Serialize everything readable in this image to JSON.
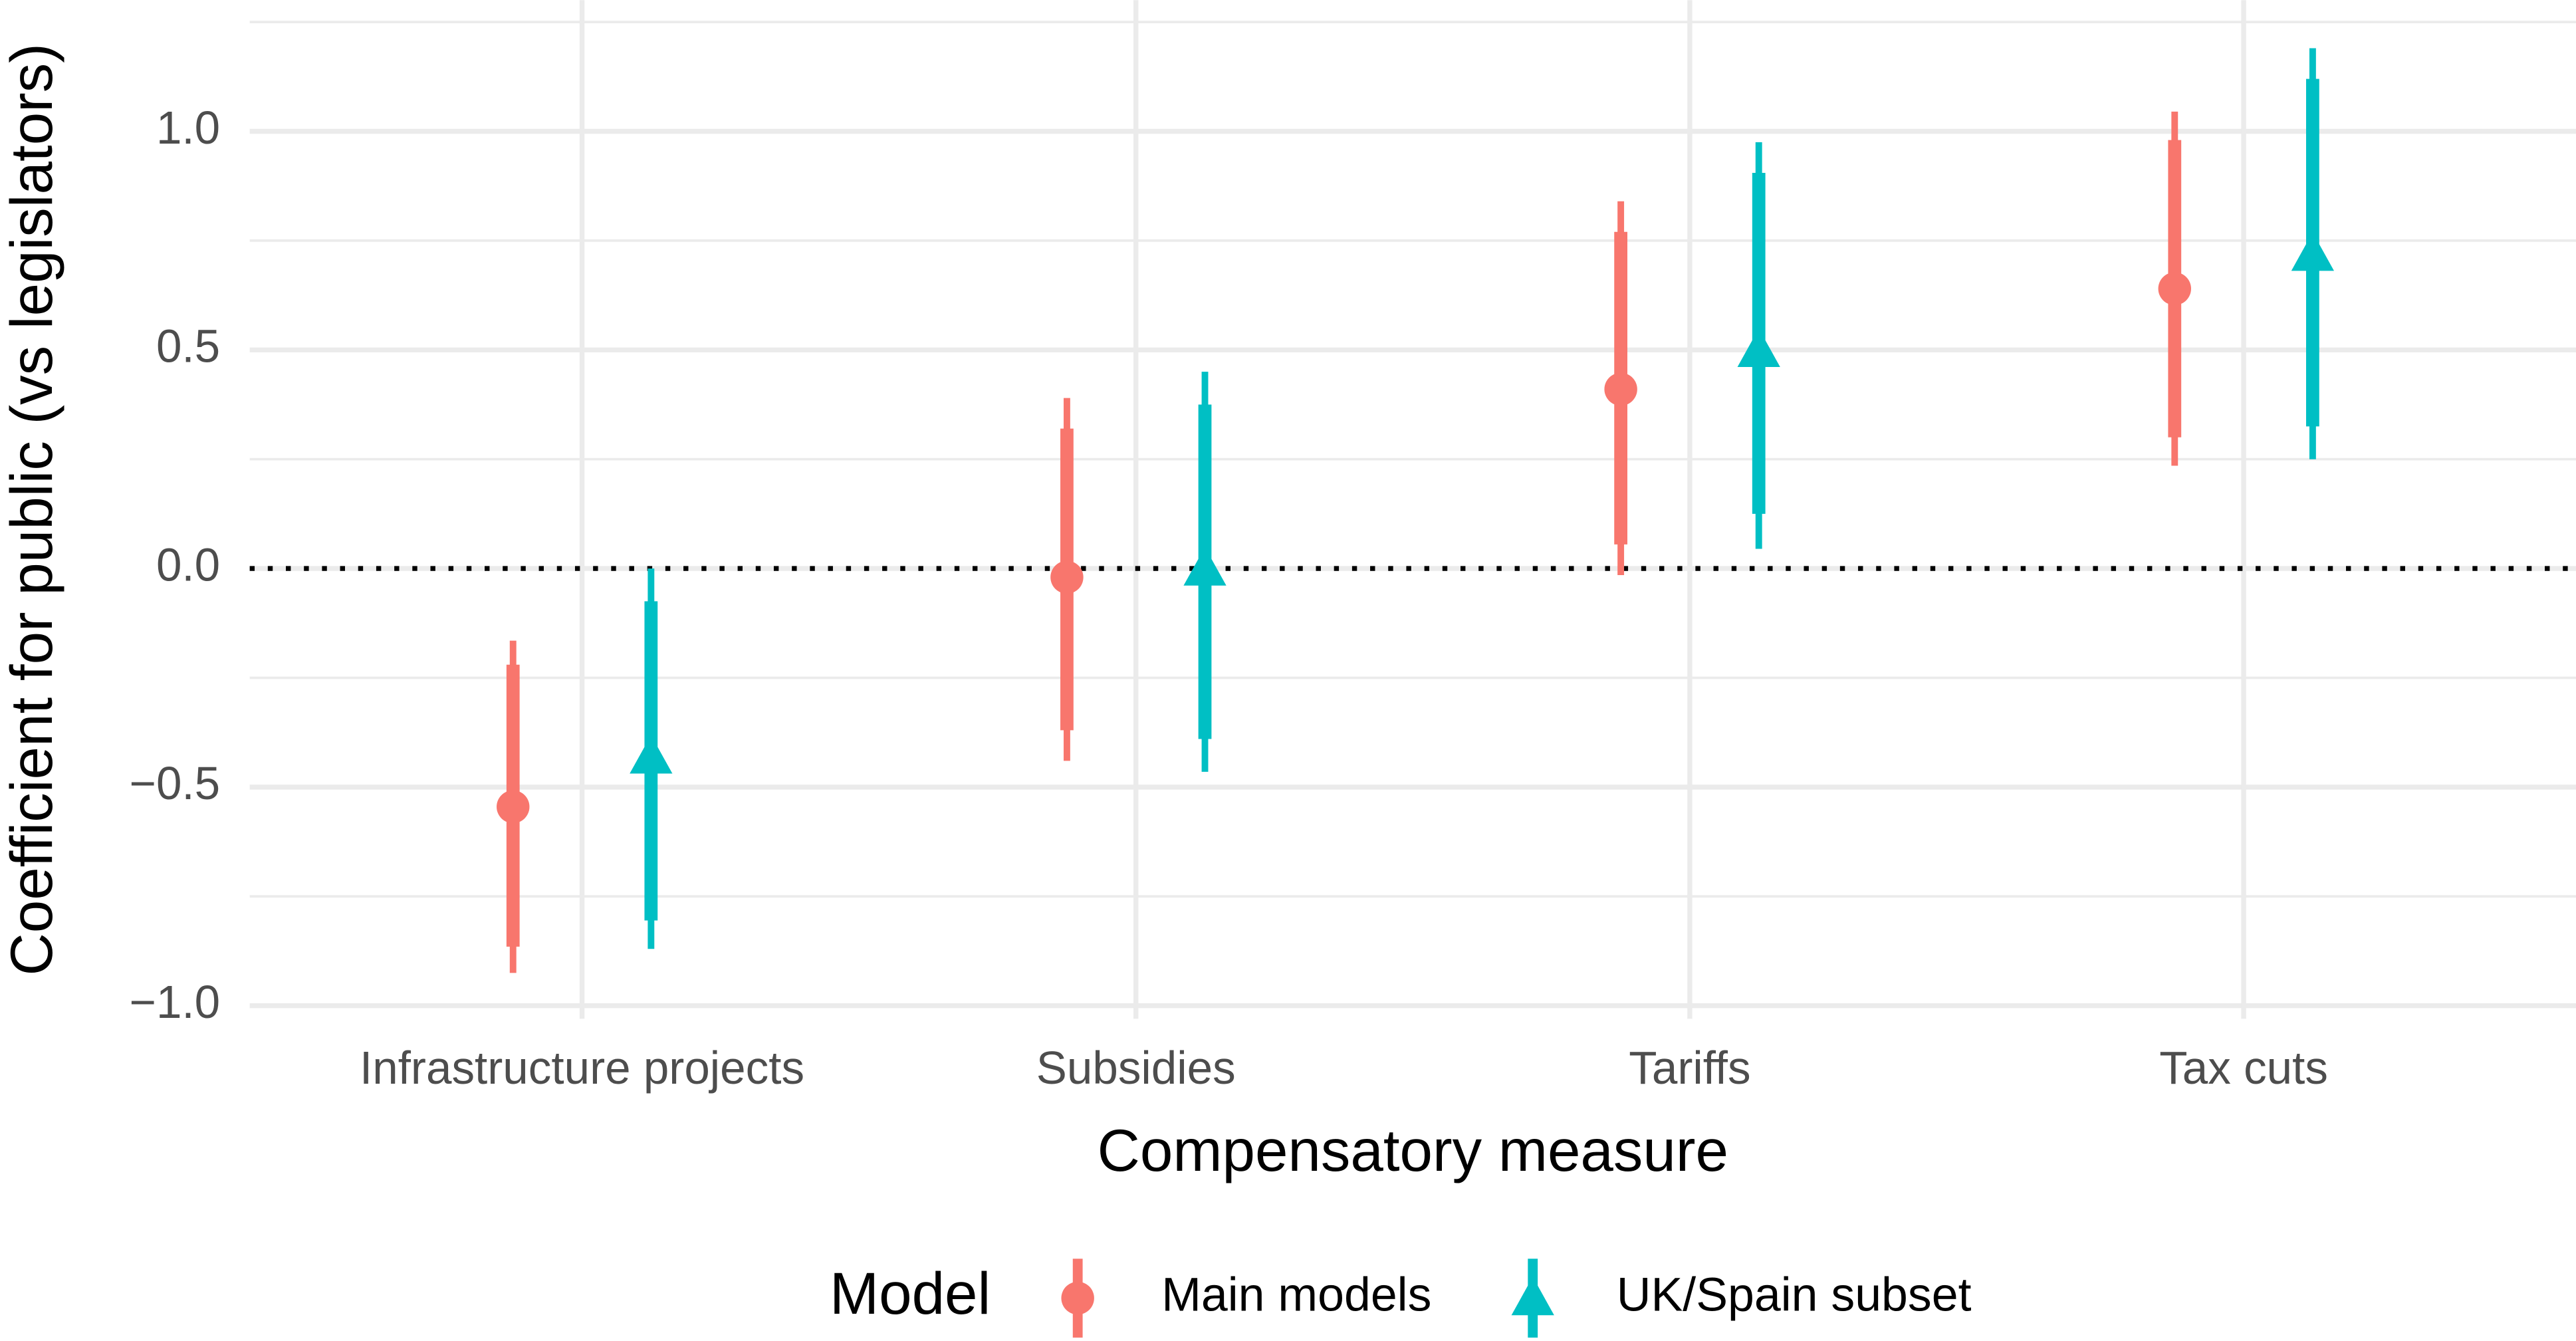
{
  "chart_data": {
    "type": "errorbar",
    "x_label": "Compensatory measure",
    "y_label": "Coefficient for public (vs legislators)",
    "categories": [
      "Infrastructure projects",
      "Subsidies",
      "Tariffs",
      "Tax cuts"
    ],
    "ylim": [
      -1.03,
      1.3
    ],
    "yticks": [
      {
        "value": -1,
        "label": "−1.0"
      },
      {
        "value": -0.5,
        "label": "−0.5"
      },
      {
        "value": 0,
        "label": "0.0"
      },
      {
        "value": 0.5,
        "label": "0.5"
      },
      {
        "value": 1,
        "label": "1.0"
      }
    ],
    "grid": true,
    "minor_grid": true,
    "reference_line": 0,
    "legend_title": "Model",
    "legend_position": "bottom",
    "series": [
      {
        "name": "Main models",
        "color": "#F8766D",
        "shape": "circle",
        "values": [
          -0.545,
          -0.02,
          0.41,
          0.64
        ],
        "inner_low": [
          -0.865,
          -0.37,
          0.055,
          0.3
        ],
        "inner_high": [
          -0.22,
          0.32,
          0.77,
          0.98
        ],
        "outer_low": [
          -0.925,
          -0.44,
          -0.015,
          0.235
        ],
        "outer_high": [
          -0.165,
          0.39,
          0.84,
          1.045
        ]
      },
      {
        "name": "UK/Spain subset",
        "color": "#00BFC4",
        "shape": "triangle",
        "values": [
          -0.43,
          0.0,
          0.5,
          0.72
        ],
        "inner_low": [
          -0.805,
          -0.39,
          0.125,
          0.325
        ],
        "inner_high": [
          -0.075,
          0.375,
          0.905,
          1.12
        ],
        "outer_low": [
          -0.87,
          -0.465,
          0.045,
          0.25
        ],
        "outer_high": [
          0.0,
          0.45,
          0.975,
          1.19
        ]
      }
    ]
  }
}
